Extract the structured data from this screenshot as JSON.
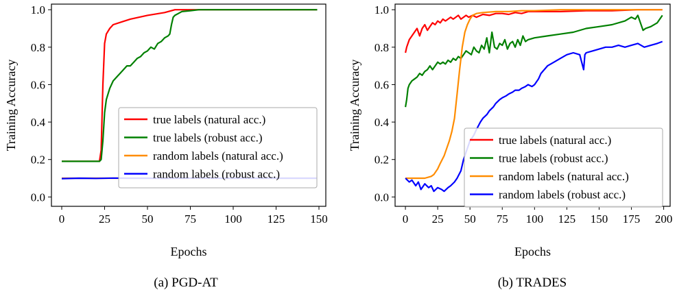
{
  "chart_data": [
    {
      "type": "line",
      "title": "",
      "caption": "(a) PGD-AT",
      "xlabel": "Epochs",
      "ylabel": "Training Accuracy",
      "xlim": [
        -6,
        154
      ],
      "ylim": [
        -0.05,
        1.03
      ],
      "xticks": [
        0,
        25,
        50,
        75,
        100,
        125,
        150
      ],
      "yticks": [
        0.0,
        0.2,
        0.4,
        0.6,
        0.8,
        1.0
      ],
      "xtick_labels": [
        "0",
        "25",
        "50",
        "75",
        "100",
        "125",
        "150"
      ],
      "ytick_labels": [
        "0.0",
        "0.2",
        "0.4",
        "0.6",
        "0.8",
        "1.0"
      ],
      "legend_position": "center-right",
      "series": [
        {
          "name": "true labels (natural acc.)",
          "color": "#ff0000",
          "x": [
            0,
            20,
            22,
            23,
            24,
            25,
            26,
            28,
            30,
            35,
            40,
            50,
            60,
            66,
            70,
            80,
            100,
            149
          ],
          "y": [
            0.19,
            0.19,
            0.19,
            0.25,
            0.6,
            0.82,
            0.87,
            0.9,
            0.92,
            0.935,
            0.95,
            0.97,
            0.985,
            1.0,
            1.0,
            1.0,
            1.0,
            1.0
          ]
        },
        {
          "name": "true labels (robust acc.)",
          "color": "#008000",
          "x": [
            0,
            20,
            22,
            23,
            24,
            25,
            26,
            27,
            28,
            30,
            32,
            34,
            36,
            38,
            40,
            42,
            44,
            46,
            48,
            50,
            52,
            54,
            56,
            58,
            60,
            62,
            63,
            64,
            65,
            66,
            68,
            70,
            75,
            80,
            90,
            100,
            149
          ],
          "y": [
            0.19,
            0.19,
            0.19,
            0.2,
            0.3,
            0.45,
            0.52,
            0.55,
            0.58,
            0.62,
            0.64,
            0.66,
            0.68,
            0.7,
            0.7,
            0.72,
            0.74,
            0.75,
            0.77,
            0.78,
            0.8,
            0.79,
            0.82,
            0.83,
            0.85,
            0.86,
            0.87,
            0.92,
            0.96,
            0.97,
            0.98,
            0.99,
            0.995,
            1.0,
            1.0,
            1.0,
            1.0
          ]
        },
        {
          "name": "random labels (natural acc.)",
          "color": "#ff8c00",
          "x": [
            0,
            50,
            100,
            149
          ],
          "y": [
            0.1,
            0.1,
            0.1,
            0.1
          ]
        },
        {
          "name": "random labels (robust acc.)",
          "color": "#0000ff",
          "x": [
            0,
            10,
            20,
            30,
            40,
            50,
            60,
            70,
            80,
            90,
            100,
            110,
            120,
            130,
            140,
            149
          ],
          "y": [
            0.098,
            0.1,
            0.099,
            0.101,
            0.1,
            0.1,
            0.099,
            0.1,
            0.101,
            0.1,
            0.1,
            0.1,
            0.1,
            0.1,
            0.1,
            0.1
          ]
        }
      ]
    },
    {
      "type": "line",
      "title": "",
      "caption": "(b) TRADES",
      "xlabel": "Epochs",
      "ylabel": "Training Accuracy",
      "xlim": [
        -8,
        205
      ],
      "ylim": [
        -0.05,
        1.03
      ],
      "xticks": [
        0,
        25,
        50,
        75,
        100,
        125,
        150,
        175,
        200
      ],
      "yticks": [
        0.0,
        0.2,
        0.4,
        0.6,
        0.8,
        1.0
      ],
      "xtick_labels": [
        "0",
        "25",
        "50",
        "75",
        "100",
        "125",
        "150",
        "175",
        "200"
      ],
      "ytick_labels": [
        "0.0",
        "0.2",
        "0.4",
        "0.6",
        "0.8",
        "1.0"
      ],
      "legend_position": "lower-right",
      "series": [
        {
          "name": "true labels (natural acc.)",
          "color": "#ff0000",
          "x": [
            0,
            1,
            3,
            5,
            7,
            9,
            11,
            13,
            15,
            17,
            19,
            21,
            23,
            25,
            27,
            29,
            31,
            33,
            35,
            37,
            39,
            41,
            43,
            45,
            47,
            49,
            52,
            55,
            60,
            65,
            70,
            75,
            80,
            85,
            90,
            95,
            100,
            120,
            140,
            160,
            180,
            199
          ],
          "y": [
            0.77,
            0.8,
            0.84,
            0.86,
            0.88,
            0.9,
            0.86,
            0.9,
            0.92,
            0.89,
            0.91,
            0.93,
            0.92,
            0.94,
            0.93,
            0.95,
            0.94,
            0.95,
            0.96,
            0.95,
            0.96,
            0.97,
            0.95,
            0.96,
            0.97,
            0.96,
            0.97,
            0.96,
            0.975,
            0.97,
            0.98,
            0.98,
            0.975,
            0.985,
            0.98,
            0.99,
            0.99,
            0.99,
            0.995,
            0.995,
            1.0,
            1.0
          ]
        },
        {
          "name": "true labels (robust acc.)",
          "color": "#008000",
          "x": [
            0,
            1,
            2,
            3,
            5,
            7,
            9,
            11,
            13,
            15,
            17,
            19,
            21,
            23,
            25,
            27,
            29,
            31,
            33,
            35,
            37,
            39,
            41,
            43,
            45,
            47,
            49,
            51,
            53,
            55,
            57,
            59,
            61,
            63,
            65,
            67,
            69,
            71,
            73,
            75,
            77,
            79,
            81,
            83,
            85,
            87,
            89,
            91,
            93,
            95,
            100,
            110,
            120,
            130,
            140,
            150,
            160,
            170,
            175,
            178,
            180,
            182,
            184,
            186,
            190,
            195,
            199
          ],
          "y": [
            0.48,
            0.52,
            0.58,
            0.6,
            0.62,
            0.63,
            0.64,
            0.66,
            0.65,
            0.67,
            0.68,
            0.7,
            0.68,
            0.7,
            0.72,
            0.71,
            0.72,
            0.71,
            0.73,
            0.72,
            0.74,
            0.73,
            0.75,
            0.74,
            0.76,
            0.78,
            0.77,
            0.76,
            0.8,
            0.78,
            0.77,
            0.81,
            0.79,
            0.85,
            0.77,
            0.88,
            0.8,
            0.79,
            0.82,
            0.81,
            0.84,
            0.79,
            0.82,
            0.83,
            0.8,
            0.84,
            0.81,
            0.86,
            0.83,
            0.84,
            0.85,
            0.86,
            0.87,
            0.88,
            0.9,
            0.91,
            0.92,
            0.94,
            0.96,
            0.95,
            0.97,
            0.93,
            0.89,
            0.9,
            0.91,
            0.93,
            0.97
          ]
        },
        {
          "name": "random labels (natural acc.)",
          "color": "#ff8c00",
          "x": [
            0,
            5,
            10,
            15,
            20,
            22,
            25,
            27,
            30,
            32,
            34,
            36,
            38,
            40,
            42,
            44,
            46,
            48,
            50,
            52,
            55,
            60,
            70,
            80,
            90,
            100,
            120,
            140,
            160,
            180,
            199
          ],
          "y": [
            0.1,
            0.1,
            0.1,
            0.1,
            0.11,
            0.12,
            0.15,
            0.18,
            0.22,
            0.26,
            0.3,
            0.35,
            0.42,
            0.55,
            0.68,
            0.8,
            0.88,
            0.92,
            0.95,
            0.97,
            0.98,
            0.985,
            0.99,
            0.99,
            0.995,
            0.995,
            1.0,
            1.0,
            1.0,
            1.0,
            1.0
          ]
        },
        {
          "name": "random labels (robust acc.)",
          "color": "#0000ff",
          "x": [
            0,
            3,
            5,
            8,
            10,
            12,
            15,
            18,
            20,
            22,
            25,
            28,
            30,
            33,
            35,
            38,
            40,
            43,
            45,
            48,
            50,
            53,
            55,
            58,
            60,
            63,
            65,
            68,
            70,
            73,
            75,
            78,
            80,
            83,
            85,
            88,
            90,
            93,
            95,
            98,
            100,
            103,
            105,
            110,
            115,
            120,
            125,
            130,
            135,
            138,
            139,
            140,
            145,
            150,
            155,
            160,
            165,
            170,
            175,
            180,
            185,
            190,
            195,
            199
          ],
          "y": [
            0.1,
            0.08,
            0.09,
            0.06,
            0.08,
            0.04,
            0.07,
            0.05,
            0.06,
            0.03,
            0.05,
            0.04,
            0.03,
            0.05,
            0.06,
            0.08,
            0.1,
            0.14,
            0.2,
            0.26,
            0.3,
            0.33,
            0.36,
            0.4,
            0.42,
            0.44,
            0.46,
            0.48,
            0.5,
            0.52,
            0.53,
            0.54,
            0.55,
            0.56,
            0.57,
            0.57,
            0.58,
            0.59,
            0.6,
            0.59,
            0.6,
            0.63,
            0.66,
            0.7,
            0.72,
            0.74,
            0.76,
            0.77,
            0.76,
            0.68,
            0.76,
            0.77,
            0.78,
            0.79,
            0.8,
            0.8,
            0.81,
            0.8,
            0.81,
            0.82,
            0.8,
            0.81,
            0.82,
            0.83
          ]
        }
      ]
    }
  ]
}
